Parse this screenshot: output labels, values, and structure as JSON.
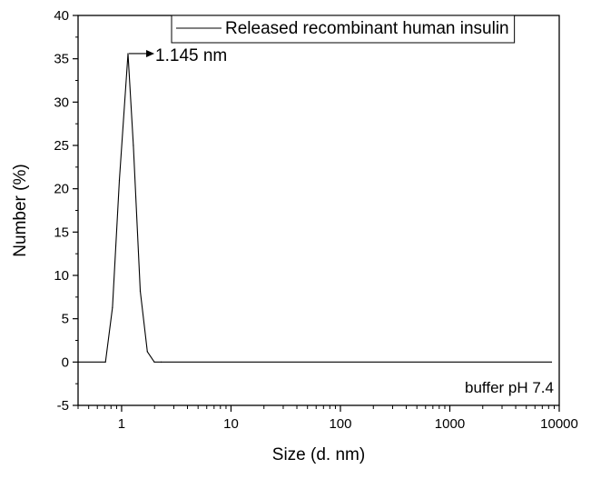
{
  "chart_data": {
    "type": "line",
    "title": "",
    "xlabel": "Size (d. nm)",
    "ylabel": "Number (%)",
    "x_scale": "log",
    "xlim": [
      0.4,
      10000
    ],
    "ylim": [
      -5,
      40
    ],
    "x_ticks": [
      {
        "value": 1,
        "label": "1"
      },
      {
        "value": 10,
        "label": "10"
      },
      {
        "value": 100,
        "label": "100"
      },
      {
        "value": 1000,
        "label": "1000"
      },
      {
        "value": 10000,
        "label": "10000"
      }
    ],
    "y_ticks": [
      {
        "value": -5,
        "label": "-5"
      },
      {
        "value": 0,
        "label": "0"
      },
      {
        "value": 5,
        "label": "5"
      },
      {
        "value": 10,
        "label": "10"
      },
      {
        "value": 15,
        "label": "15"
      },
      {
        "value": 20,
        "label": "20"
      },
      {
        "value": 25,
        "label": "25"
      },
      {
        "value": 30,
        "label": "30"
      },
      {
        "value": 35,
        "label": "35"
      },
      {
        "value": 40,
        "label": "40"
      }
    ],
    "grid": false,
    "legend_position": "top-right",
    "series": [
      {
        "name": "Released recombinant human insulin",
        "color": "#000000",
        "x": [
          0.4,
          0.712,
          0.825,
          0.955,
          1.145,
          1.28,
          1.48,
          1.72,
          1.99,
          2.3,
          8500
        ],
        "y": [
          0,
          0,
          6.3,
          21,
          35.6,
          25,
          8.2,
          1.2,
          0,
          0,
          0
        ]
      }
    ],
    "annotations": [
      {
        "text": "1.145 nm",
        "x": 1.145,
        "y": 35.6
      }
    ],
    "corner_label": "buffer pH 7.4"
  }
}
